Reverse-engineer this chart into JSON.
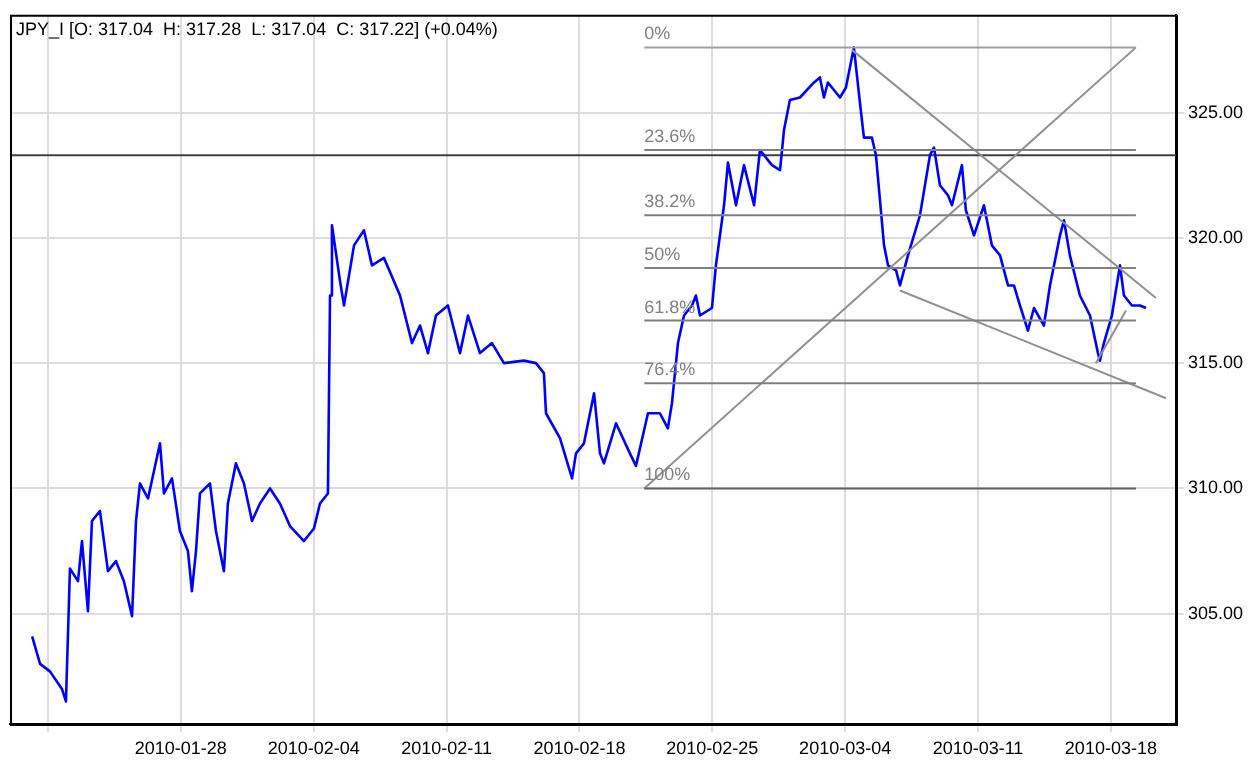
{
  "chart_data": {
    "type": "line",
    "title": "JPY_I [O: 317.04  H: 317.28  L: 317.04  C: 317.22] (+0.04%)",
    "x": [
      "2010-01-20T04:00",
      "2010-01-20T14:00",
      "2010-01-21T02:30",
      "2010-01-21T17:40",
      "2010-01-21T22:45",
      "2010-01-22T03:50",
      "2010-01-22T14:00",
      "2010-01-22T19:00",
      "2010-01-23T02:35",
      "2010-01-23T07:40",
      "2010-01-23T17:45",
      "2010-01-24T03:50",
      "2010-01-24T14:00",
      "2010-01-25T00:00",
      "2010-01-25T10:20",
      "2010-01-25T15:20",
      "2010-01-25T20:20",
      "2010-01-26T06:30",
      "2010-01-26T21:40",
      "2010-01-27T02:40",
      "2010-01-27T12:50",
      "2010-01-27T22:50",
      "2010-01-28T09:00",
      "2010-01-28T14:00",
      "2010-01-28T19:10",
      "2010-01-29T00:10",
      "2010-01-29T12:50",
      "2010-01-29T20:25",
      "2010-01-30T06:30",
      "2010-01-30T11:30",
      "2010-01-30T21:40",
      "2010-01-31T07:50",
      "2010-01-31T18:00",
      "2010-02-01T04:05",
      "2010-02-01T16:45",
      "2010-02-02T05:20",
      "2010-02-02T18:00",
      "2010-02-03T11:40",
      "2010-02-04T00:20",
      "2010-02-04T07:55",
      "2010-02-04T18:00",
      "2010-02-04T20:40",
      "2010-02-04T23:05",
      "2010-02-05T09:10",
      "2010-02-05T14:20",
      "2010-02-06T03:00",
      "2010-02-06T15:35",
      "2010-02-07T01:40",
      "2010-02-07T16:50",
      "2010-02-08T13:10",
      "2010-02-09T04:20",
      "2010-02-09T14:25",
      "2010-02-10T00:30",
      "2010-02-10T10:35",
      "2010-02-11T01:45",
      "2010-02-11T17:00",
      "2010-02-12T03:05",
      "2010-02-12T18:15",
      "2010-02-13T09:25",
      "2010-02-14T00:30",
      "2010-02-15T01:50",
      "2010-02-15T17:00",
      "2010-02-16T03:05",
      "2010-02-16T05:45",
      "2010-02-16T23:30",
      "2010-02-17T14:40",
      "2010-02-17T19:40",
      "2010-02-18T05:45",
      "2010-02-18T18:30",
      "2010-02-19T02:00",
      "2010-02-19T07:00",
      "2010-02-19T22:15",
      "2010-02-20T15:50",
      "2010-02-20T23:30",
      "2010-02-21T14:40",
      "2010-02-22T05:45",
      "2010-02-22T15:50",
      "2010-02-22T21:00",
      "2010-02-23T04:35",
      "2010-02-23T12:15",
      "2010-02-23T22:20",
      "2010-02-24T03:20",
      "2010-02-24T08:25",
      "2010-02-24T23:35",
      "2010-02-25T04:35",
      "2010-02-25T14:50",
      "2010-02-25T19:50",
      "2010-02-26T06:00",
      "2010-02-26T16:05",
      "2010-02-27T04:50",
      "2010-02-27T12:15",
      "2010-02-28T03:25",
      "2010-02-28T13:40",
      "2010-02-28T18:40",
      "2010-03-01T02:10",
      "2010-03-01T14:50",
      "2010-03-02T08:35",
      "2010-03-02T16:05",
      "2010-03-02T21:10",
      "2010-03-03T02:10",
      "2010-03-03T17:30",
      "2010-03-04T01:00",
      "2010-03-04T11:00",
      "2010-03-04T18:40",
      "2010-03-04T23:45",
      "2010-03-05T09:50",
      "2010-03-05T14:55",
      "2010-03-06T01:10",
      "2010-03-06T06:15",
      "2010-03-06T16:20",
      "2010-03-06T21:20",
      "2010-03-07T07:25",
      "2010-03-07T22:35",
      "2010-03-08T11:15",
      "2010-03-08T16:20",
      "2010-03-08T23:50",
      "2010-03-09T10:00",
      "2010-03-09T15:05",
      "2010-03-10T03:40",
      "2010-03-10T08:40",
      "2010-03-10T18:55",
      "2010-03-11T07:30",
      "2010-03-11T17:30",
      "2010-03-12T03:50",
      "2010-03-12T13:55",
      "2010-03-12T21:25",
      "2010-03-13T05:00",
      "2010-03-13T15:05",
      "2010-03-13T22:45",
      "2010-03-14T11:20",
      "2010-03-14T19:00",
      "2010-03-15T07:40",
      "2010-03-15T12:40",
      "2010-03-15T20:10",
      "2010-03-16T08:50",
      "2010-03-16T21:35",
      "2010-03-17T07:40",
      "2010-03-17T10:05",
      "2010-03-17T15:10",
      "2010-03-18T01:15",
      "2010-03-18T11:30",
      "2010-03-18T16:30",
      "2010-03-19T02:40",
      "2010-03-19T12:45",
      "2010-03-19T20:25"
    ],
    "series": [
      {
        "color": "#0000ff",
        "values": [
          304.1,
          303.0,
          302.7,
          302.0,
          301.5,
          306.8,
          306.3,
          307.9,
          305.1,
          308.7,
          309.1,
          306.7,
          307.1,
          306.3,
          304.9,
          308.7,
          310.2,
          309.6,
          311.8,
          309.8,
          310.4,
          308.3,
          307.5,
          305.9,
          307.5,
          309.8,
          310.2,
          308.3,
          306.7,
          309.4,
          311.0,
          310.2,
          308.7,
          309.4,
          310.0,
          309.4,
          308.5,
          307.9,
          308.4,
          309.4,
          309.8,
          317.7,
          320.5,
          318.3,
          317.3,
          319.7,
          320.3,
          318.9,
          319.2,
          317.7,
          315.8,
          316.5,
          315.4,
          316.9,
          317.3,
          315.4,
          316.9,
          315.4,
          315.8,
          315.0,
          315.1,
          315.0,
          314.6,
          313.0,
          312.0,
          310.4,
          311.4,
          311.8,
          313.8,
          311.4,
          311.0,
          312.6,
          311.4,
          310.9,
          313.0,
          313.0,
          312.4,
          313.4,
          315.8,
          316.9,
          317.3,
          317.7,
          316.9,
          317.2,
          318.9,
          321.3,
          323.0,
          321.3,
          322.9,
          321.3,
          323.5,
          322.9,
          322.7,
          324.3,
          325.5,
          325.6,
          326.2,
          326.4,
          325.6,
          326.2,
          325.6,
          326.0,
          327.6,
          325.4,
          324.0,
          324.0,
          323.3,
          319.7,
          318.9,
          318.7,
          318.1,
          319.3,
          320.9,
          323.3,
          323.6,
          322.1,
          321.7,
          321.3,
          322.9,
          321.1,
          320.1,
          321.3,
          319.7,
          319.3,
          318.1,
          318.1,
          317.3,
          316.3,
          317.2,
          316.5,
          318.1,
          320.1,
          320.7,
          319.3,
          317.7,
          316.9,
          315.4,
          315.1,
          315.8,
          316.9,
          318.9,
          317.7,
          317.3,
          317.3,
          317.2
        ]
      },
      {
        "name": "0%",
        "color": "#a0a0a0",
        "x": [
          "2010-02-21T10:00",
          "2010-03-19T07:40"
        ],
        "values": [
          327.6,
          327.6
        ]
      },
      {
        "name": "23.6%",
        "color": "#808080",
        "x": [
          "2010-02-21T10:00",
          "2010-03-19T07:40"
        ],
        "values": [
          323.5,
          323.5
        ]
      },
      {
        "name": "38.2%",
        "color": "#808080",
        "x": [
          "2010-02-21T10:00",
          "2010-03-19T07:40"
        ],
        "values": [
          320.9,
          320.9
        ]
      },
      {
        "name": "50%",
        "color": "#808080",
        "x": [
          "2010-02-21T10:00",
          "2010-03-19T07:40"
        ],
        "values": [
          318.8,
          318.8
        ]
      },
      {
        "name": "61.8%",
        "color": "#808080",
        "x": [
          "2010-02-21T10:00",
          "2010-03-19T07:40"
        ],
        "values": [
          316.7,
          316.7
        ]
      },
      {
        "name": "76.4%",
        "color": "#808080",
        "x": [
          "2010-02-21T10:00",
          "2010-03-19T07:40"
        ],
        "values": [
          314.2,
          314.2
        ]
      },
      {
        "name": "100%",
        "color": "#606060",
        "x": [
          "2010-02-21T10:00",
          "2010-03-19T07:40"
        ],
        "values": [
          310.0,
          310.0
        ]
      },
      {
        "color": "#909090",
        "x": [
          "2010-02-21T10:00",
          "2010-03-19T07:40"
        ],
        "values": [
          310.0,
          327.6
        ]
      },
      {
        "color": "#909090",
        "x": [
          "2010-03-04T08:30",
          "2010-03-20T09:00"
        ],
        "values": [
          327.5,
          317.6
        ]
      },
      {
        "color": "#909090",
        "x": [
          "2010-03-06T21:20",
          "2010-03-20T21:40"
        ],
        "values": [
          317.9,
          313.6
        ]
      },
      {
        "color": "#909090",
        "x": [
          "2010-03-17T05:00",
          "2010-03-18T19:10"
        ],
        "values": [
          315.0,
          317.1
        ]
      }
    ],
    "ref_lines": [
      {
        "axis": "y",
        "value": 323.3,
        "color": "#404040"
      }
    ],
    "xlim": [
      "2010-01-19T00:00",
      "2010-03-21T10:20"
    ],
    "xticks": [
      {
        "value": "2010-01-21",
        "label": null
      },
      "2010-01-28",
      "2010-02-04",
      "2010-02-11",
      "2010-02-18",
      "2010-02-25",
      "2010-03-04",
      "2010-03-11",
      "2010-03-18"
    ],
    "ylim": [
      300.6,
      328.9
    ],
    "yticks": [
      {
        "value": 305,
        "label": "305.00"
      },
      {
        "value": 310,
        "label": "310.00"
      },
      {
        "value": 315,
        "label": "315.00"
      },
      {
        "value": 320,
        "label": "320.00"
      },
      {
        "value": 325,
        "label": "325.00"
      }
    ],
    "grid": true,
    "marker": "none",
    "line_style": "solid"
  }
}
